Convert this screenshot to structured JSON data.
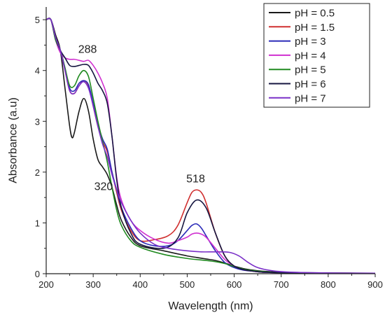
{
  "chart_data": {
    "type": "line",
    "title": "",
    "xlabel": "Wavelength (nm)",
    "ylabel": "Absorbance (a.u)",
    "xlim": [
      200,
      900
    ],
    "ylim": [
      0,
      5.25
    ],
    "xticks": [
      200,
      300,
      400,
      500,
      600,
      700,
      800,
      900
    ],
    "yticks": [
      0,
      1,
      2,
      3,
      4,
      5
    ],
    "grid": false,
    "legend": {
      "position": "top-right",
      "frame": true
    },
    "annotations": [
      {
        "text": "288",
        "x": 288,
        "y": 4.35
      },
      {
        "text": "320",
        "x": 322,
        "y": 1.65
      },
      {
        "text": "518",
        "x": 518,
        "y": 1.8
      }
    ],
    "series": [
      {
        "name": "pH = 0.5",
        "color": "#1a1a1a",
        "x": [
          200,
          210,
          220,
          230,
          240,
          250,
          255,
          260,
          270,
          280,
          290,
          300,
          310,
          320,
          330,
          340,
          350,
          360,
          380,
          400,
          450,
          500,
          520,
          540,
          560,
          580,
          600,
          620,
          640,
          660,
          700,
          750,
          800,
          900
        ],
        "y": [
          5.0,
          5.0,
          4.7,
          4.4,
          3.65,
          2.9,
          2.68,
          2.78,
          3.2,
          3.45,
          3.2,
          2.65,
          2.25,
          2.1,
          1.95,
          1.7,
          1.35,
          1.05,
          0.72,
          0.55,
          0.45,
          0.35,
          0.32,
          0.29,
          0.26,
          0.21,
          0.15,
          0.1,
          0.07,
          0.05,
          0.03,
          0.02,
          0.015,
          0.01
        ]
      },
      {
        "name": "pH = 1.5",
        "color": "#d03030",
        "x": [
          200,
          210,
          220,
          230,
          240,
          250,
          260,
          270,
          280,
          290,
          300,
          310,
          320,
          330,
          340,
          350,
          360,
          380,
          400,
          430,
          460,
          480,
          500,
          510,
          520,
          530,
          540,
          560,
          580,
          600,
          620,
          640,
          660,
          700,
          800,
          900
        ],
        "y": [
          5.0,
          5.0,
          4.6,
          4.4,
          4.0,
          3.6,
          3.55,
          3.7,
          3.8,
          3.7,
          3.3,
          2.9,
          2.6,
          2.4,
          2.0,
          1.6,
          1.25,
          0.85,
          0.65,
          0.67,
          0.75,
          0.95,
          1.4,
          1.6,
          1.65,
          1.6,
          1.4,
          0.8,
          0.35,
          0.15,
          0.08,
          0.05,
          0.03,
          0.02,
          0.01,
          0.01
        ]
      },
      {
        "name": "pH = 3",
        "color": "#2a2ab8",
        "x": [
          200,
          210,
          220,
          230,
          240,
          250,
          260,
          270,
          280,
          290,
          300,
          310,
          320,
          330,
          340,
          350,
          360,
          380,
          400,
          430,
          460,
          480,
          500,
          510,
          520,
          530,
          540,
          560,
          580,
          600,
          620,
          640,
          660,
          700,
          800,
          900
        ],
        "y": [
          5.0,
          5.0,
          4.6,
          4.4,
          4.05,
          3.65,
          3.6,
          3.75,
          3.8,
          3.72,
          3.35,
          2.95,
          2.65,
          2.45,
          2.0,
          1.65,
          1.3,
          0.9,
          0.65,
          0.55,
          0.55,
          0.65,
          0.85,
          0.95,
          0.98,
          0.9,
          0.75,
          0.45,
          0.22,
          0.12,
          0.07,
          0.05,
          0.03,
          0.02,
          0.01,
          0.01
        ]
      },
      {
        "name": "pH = 4",
        "color": "#d030d0",
        "x": [
          200,
          210,
          220,
          230,
          240,
          250,
          260,
          270,
          280,
          290,
          300,
          310,
          320,
          330,
          340,
          350,
          360,
          380,
          400,
          430,
          460,
          480,
          500,
          510,
          520,
          530,
          540,
          560,
          580,
          600,
          620,
          640,
          660,
          700,
          800,
          900
        ],
        "y": [
          5.0,
          5.0,
          4.6,
          4.35,
          4.25,
          4.22,
          4.22,
          4.2,
          4.18,
          4.2,
          4.1,
          3.95,
          3.75,
          3.45,
          2.7,
          1.9,
          1.45,
          1.05,
          0.85,
          0.68,
          0.6,
          0.65,
          0.72,
          0.78,
          0.8,
          0.78,
          0.72,
          0.5,
          0.28,
          0.15,
          0.08,
          0.05,
          0.03,
          0.02,
          0.01,
          0.01
        ]
      },
      {
        "name": "pH = 5",
        "color": "#208a20",
        "x": [
          200,
          210,
          220,
          230,
          240,
          250,
          260,
          270,
          280,
          290,
          300,
          310,
          320,
          330,
          340,
          350,
          360,
          380,
          400,
          450,
          500,
          550,
          580,
          600,
          620,
          640,
          660,
          700,
          800,
          900
        ],
        "y": [
          5.0,
          5.0,
          4.6,
          4.4,
          4.05,
          3.7,
          3.7,
          3.9,
          4.0,
          3.88,
          3.45,
          3.0,
          2.6,
          2.2,
          1.7,
          1.25,
          0.95,
          0.65,
          0.52,
          0.38,
          0.3,
          0.25,
          0.2,
          0.14,
          0.09,
          0.06,
          0.04,
          0.02,
          0.01,
          0.01
        ]
      },
      {
        "name": "pH = 6",
        "color": "#161640",
        "x": [
          200,
          210,
          220,
          230,
          240,
          250,
          260,
          270,
          280,
          290,
          300,
          310,
          320,
          330,
          340,
          350,
          360,
          380,
          400,
          450,
          480,
          500,
          520,
          540,
          560,
          580,
          600,
          620,
          640,
          660,
          700,
          800,
          900
        ],
        "y": [
          5.0,
          5.0,
          4.65,
          4.4,
          4.25,
          4.1,
          4.08,
          4.1,
          4.12,
          4.1,
          3.95,
          3.75,
          3.6,
          3.35,
          2.7,
          1.85,
          1.3,
          0.8,
          0.58,
          0.5,
          0.7,
          1.2,
          1.45,
          1.3,
          0.8,
          0.35,
          0.15,
          0.08,
          0.05,
          0.03,
          0.02,
          0.01,
          0.01
        ]
      },
      {
        "name": "pH = 7",
        "color": "#7a30c8",
        "x": [
          200,
          210,
          220,
          230,
          240,
          250,
          260,
          270,
          280,
          290,
          300,
          310,
          320,
          330,
          340,
          350,
          360,
          380,
          400,
          430,
          460,
          500,
          530,
          560,
          590,
          610,
          630,
          650,
          680,
          720,
          800,
          900
        ],
        "y": [
          5.0,
          5.0,
          4.65,
          4.4,
          4.0,
          3.6,
          3.55,
          3.7,
          3.78,
          3.65,
          3.3,
          2.9,
          2.55,
          2.3,
          1.95,
          1.65,
          1.4,
          1.05,
          0.8,
          0.58,
          0.5,
          0.45,
          0.43,
          0.43,
          0.42,
          0.35,
          0.22,
          0.12,
          0.06,
          0.03,
          0.015,
          0.01
        ]
      }
    ]
  }
}
